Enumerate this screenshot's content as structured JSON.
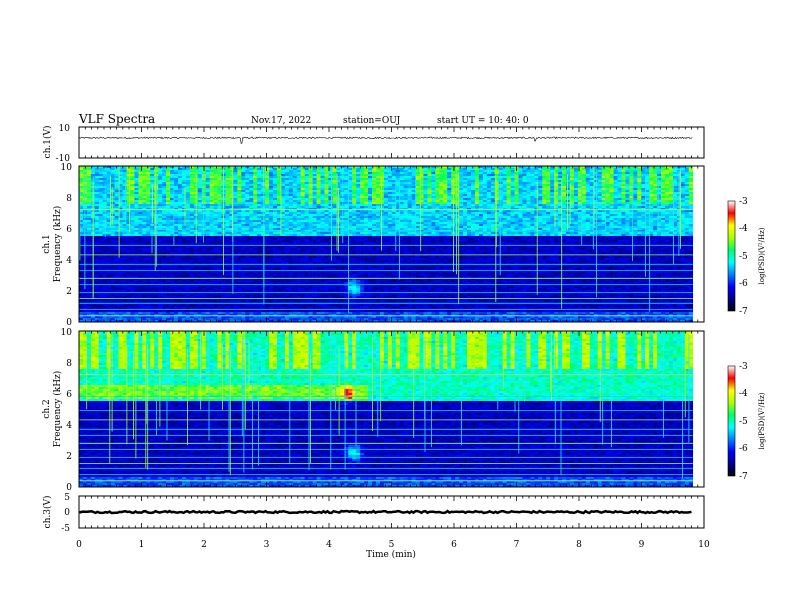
{
  "header": {
    "title": "VLF Spectra",
    "date": "Nov.17, 2022",
    "station": "station=OUJ",
    "start": "start UT = 10: 40: 0"
  },
  "chart_data": [
    {
      "type": "line",
      "panel": "ch1-waveform",
      "ylabel": "ch.1(V)",
      "ylim": [
        -10,
        10
      ],
      "y_ticks": [
        "10",
        "-10"
      ],
      "baseline": 3,
      "noise_amplitude": 0.5,
      "spikes": [
        {
          "x": 2.6,
          "y": -0.5
        },
        {
          "x": 7.3,
          "y": 1
        }
      ]
    },
    {
      "type": "heatmap",
      "panel": "ch1-spectrogram",
      "ylabel_line1": "ch.1",
      "ylabel_line2": "Frequency (kHz)",
      "ylim": [
        0,
        10
      ],
      "y_ticks": [
        "0",
        "2",
        "4",
        "6",
        "8",
        "10"
      ],
      "emission_band": [
        {
          "x": 4.4,
          "f": 2.2
        }
      ],
      "strong_band": [
        5.5,
        10
      ],
      "colorbar": {
        "label": "log(PSD)(V²/Hz)",
        "range": [
          -7,
          -3
        ],
        "ticks": [
          "-3",
          "-4",
          "-5",
          "-6",
          "-7"
        ]
      }
    },
    {
      "type": "heatmap",
      "panel": "ch2-spectrogram",
      "ylabel_line1": "ch.2",
      "ylabel_line2": "Frequency (kHz)",
      "ylim": [
        0,
        10
      ],
      "y_ticks": [
        "0",
        "2",
        "4",
        "6",
        "8",
        "10"
      ],
      "emission_band": [
        {
          "x": 4.4,
          "f": 2.2
        },
        {
          "x": 4.3,
          "f": 6
        }
      ],
      "strong_band": [
        5.5,
        10
      ],
      "colorbar": {
        "label": "log(PSD)(V²/Hz)",
        "range": [
          -7,
          -3
        ],
        "ticks": [
          "-3",
          "-4",
          "-5",
          "-6",
          "-7"
        ]
      }
    },
    {
      "type": "line",
      "panel": "ch3-waveform",
      "ylabel": "ch.3(V)",
      "ylim": [
        -5,
        5
      ],
      "y_ticks": [
        "5",
        "0",
        "-5"
      ],
      "baseline": 0,
      "noise_amplitude": 0.3
    }
  ],
  "xaxis": {
    "label": "Time (min)",
    "range": [
      0,
      10
    ],
    "ticks": [
      "0",
      "1",
      "2",
      "3",
      "4",
      "5",
      "6",
      "7",
      "8",
      "9",
      "10"
    ],
    "data_end": 9.82
  },
  "colors": {
    "colormap": [
      "#000000",
      "#00008c",
      "#0000ff",
      "#0080ff",
      "#00ffff",
      "#00ff66",
      "#aaff00",
      "#ffff00",
      "#ff0000",
      "#ffffff"
    ],
    "waveform": "#000000"
  }
}
